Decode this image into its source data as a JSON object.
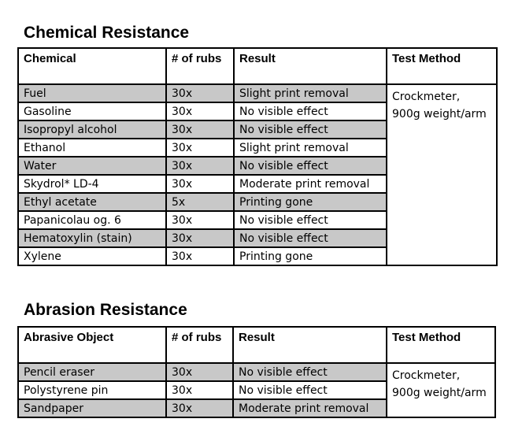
{
  "chemical": {
    "title": "Chemical Resistance",
    "headers": [
      "Chemical",
      "# of rubs",
      "Result",
      "Test Method"
    ],
    "rows": [
      {
        "name": "Fuel",
        "rubs": "30x",
        "result": "Slight print removal"
      },
      {
        "name": "Gasoline",
        "rubs": "30x",
        "result": "No visible effect"
      },
      {
        "name": "Isopropyl alcohol",
        "rubs": "30x",
        "result": "No visible effect"
      },
      {
        "name": "Ethanol",
        "rubs": "30x",
        "result": "Slight print removal"
      },
      {
        "name": "Water",
        "rubs": "30x",
        "result": "No visible effect"
      },
      {
        "name": "Skydrol* LD-4",
        "rubs": "30x",
        "result": "Moderate print removal"
      },
      {
        "name": "Ethyl acetate",
        "rubs": "5x",
        "result": "Printing gone"
      },
      {
        "name": "Papanicolau og. 6",
        "rubs": "30x",
        "result": "No visible effect"
      },
      {
        "name": "Hematoxylin (stain)",
        "rubs": "30x",
        "result": "No visible effect"
      },
      {
        "name": "Xylene",
        "rubs": "30x",
        "result": "Printing gone"
      }
    ],
    "test_method": [
      "Crockmeter,",
      "900g weight/arm"
    ]
  },
  "abrasion": {
    "title": "Abrasion Resistance",
    "headers": [
      "Abrasive Object",
      "# of rubs",
      "Result",
      "Test Method"
    ],
    "rows": [
      {
        "name": "Pencil eraser",
        "rubs": "30x",
        "result": "No visible effect"
      },
      {
        "name": "Polystyrene pin",
        "rubs": "30x",
        "result": "No visible effect"
      },
      {
        "name": "Sandpaper",
        "rubs": "30x",
        "result": "Moderate print removal"
      }
    ],
    "test_method": [
      "Crockmeter,",
      "900g weight/arm"
    ]
  },
  "colors": {
    "shaded_row": "#c8c8c8",
    "border": "#000000"
  }
}
